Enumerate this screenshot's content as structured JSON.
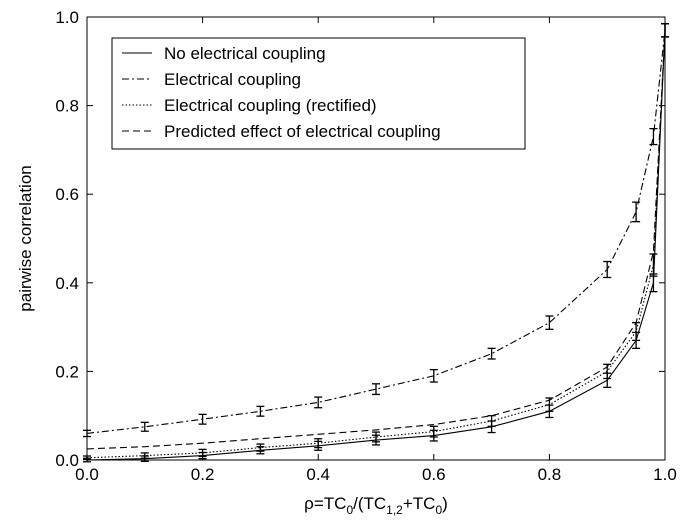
{
  "chart_data": {
    "type": "line",
    "title": "",
    "xlabel_parts": {
      "p1": "ρ=TC",
      "s1": "0",
      "p2": "/(TC",
      "s2": "1,2",
      "p3": "+TC",
      "s3": "0",
      "p4": ")"
    },
    "ylabel": "pairwise correlation",
    "xlim": [
      0,
      1
    ],
    "ylim": [
      0,
      1
    ],
    "xticks": [
      "0.0",
      "0.2",
      "0.4",
      "0.6",
      "0.8",
      "1.0"
    ],
    "yticks": [
      "0.0",
      "0.2",
      "0.4",
      "0.6",
      "0.8",
      "1.0"
    ],
    "grid": false,
    "legend_position": "top-left",
    "x": [
      0,
      0.1,
      0.2,
      0.3,
      0.4,
      0.5,
      0.6,
      0.7,
      0.8,
      0.9,
      0.95,
      0.98,
      1.0
    ],
    "series": [
      {
        "name": "No electrical coupling",
        "style": "solid",
        "values": [
          0.0,
          0.003,
          0.01,
          0.022,
          0.032,
          0.045,
          0.055,
          0.075,
          0.11,
          0.18,
          0.27,
          0.4,
          0.97
        ],
        "errors": [
          0.004,
          0.006,
          0.007,
          0.008,
          0.01,
          0.011,
          0.012,
          0.013,
          0.014,
          0.016,
          0.018,
          0.02,
          0.015
        ]
      },
      {
        "name": "Electrical coupling",
        "style": "dashdot",
        "values": [
          0.06,
          0.075,
          0.092,
          0.11,
          0.13,
          0.16,
          0.19,
          0.24,
          0.31,
          0.43,
          0.56,
          0.73,
          0.97
        ],
        "errors": [
          0.007,
          0.01,
          0.011,
          0.011,
          0.012,
          0.012,
          0.014,
          0.012,
          0.015,
          0.018,
          0.022,
          0.018,
          0.015
        ]
      },
      {
        "name": "Electrical coupling (rectified)",
        "style": "dotted",
        "values": [
          0.005,
          0.01,
          0.016,
          0.028,
          0.038,
          0.052,
          0.064,
          0.088,
          0.125,
          0.2,
          0.29,
          0.44,
          0.97
        ],
        "errors": [
          0.004,
          0.006,
          0.008,
          0.008,
          0.01,
          0.011,
          0.012,
          0.012,
          0.015,
          0.016,
          0.02,
          0.025,
          0.015
        ]
      },
      {
        "name": "Predicted effect of electrical coupling",
        "style": "dashed",
        "values": [
          0.025,
          0.03,
          0.038,
          0.048,
          0.058,
          0.068,
          0.08,
          0.1,
          0.135,
          0.21,
          0.31,
          0.47,
          0.97
        ],
        "errors": []
      }
    ]
  }
}
